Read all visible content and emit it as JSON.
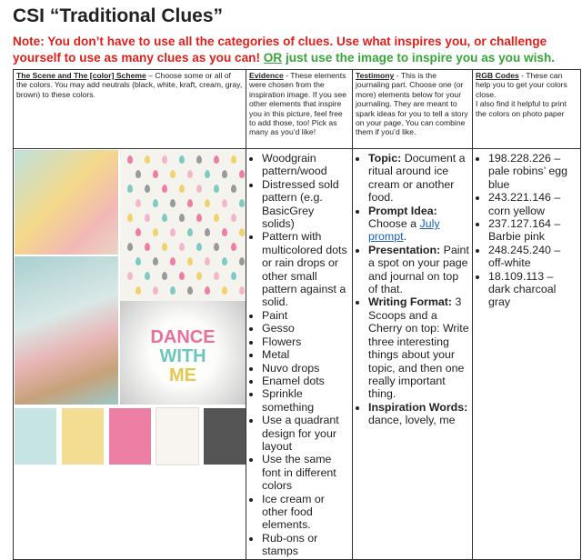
{
  "header": {
    "title": "CSI “Traditional Clues”",
    "note": "Note: You don’t have to use all the categories of clues. Use what inspires you, or challenge yourself to use as many clues as you can!",
    "note_alt_or": "OR",
    "note_alt": "just use the image to inspire you as you wish."
  },
  "table": {
    "headers": [
      {
        "title": "The Scene and The [color] Scheme",
        "description": "– Choose some or all of the colors. You may add neutrals (black, white, kraft, cream, gray, brown) to these colors."
      },
      {
        "title": "Evidence",
        "description": "- These elements were chosen from the inspiration image. If you see other elements that inspire you in this picture, feel free to add those, too! Pick as many as you’d like!"
      },
      {
        "title": "Testimony",
        "description": "- This is the journaling part. Choose one (or more) elements below for your journaling. They are meant to spark ideas for you to tell a story on your page. You can combine them if you’d like."
      },
      {
        "title": "RGB Codes",
        "description": "- These can help you to get your colors close.",
        "description_2": "I also find it helpful to print the colors on photo paper"
      }
    ]
  },
  "image_text": [
    "DANCE",
    "WITH",
    "ME"
  ],
  "evidence": [
    "Woodgrain pattern/wood",
    "Distressed sold pattern (e.g. BasicGrey solids)",
    "Pattern with multicolored dots or rain drops or other small pattern against a solid.",
    "Paint",
    "Gesso",
    "Flowers",
    "Metal",
    "Nuvo drops",
    "Enamel dots",
    "Sprinkle something",
    "Use a quadrant design for your layout",
    "Use the same font in different colors",
    "Ice cream or other food elements.",
    "Rub-ons or stamps"
  ],
  "testimony": [
    {
      "label": "Topic:",
      "text": "Document a ritual around ice cream or another food."
    },
    {
      "label": "Prompt Idea:",
      "text": "Choose a",
      "link": "July prompt",
      "suffix": "."
    },
    {
      "label": "Presentation:",
      "text": "Paint a spot on your page and journal on top of that."
    },
    {
      "label": "Writing Format:",
      "text": "3 Scoops and a Cherry on top: Write three interesting things about your topic, and then one really important thing."
    },
    {
      "label": "Inspiration Words:",
      "text": "dance, lovely, me"
    }
  ],
  "rgb_codes": [
    "198.228.226 – pale robins’ egg blue",
    "243.221.146 – corn yellow",
    "237.127.164 – Barbie pink",
    "248.245.240 – off-white",
    "18.109.113 – dark charcoal gray"
  ]
}
